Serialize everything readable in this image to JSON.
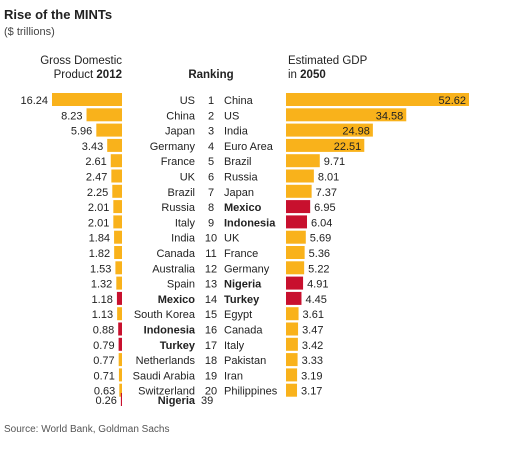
{
  "title": "Rise of the MINTs",
  "subtitle": "($ trillions)",
  "left_header": {
    "line1": "Gross Domestic",
    "line2": "Product",
    "year": "2012"
  },
  "center_header": "Ranking",
  "right_header": {
    "line1": "Estimated GDP",
    "line2": "in",
    "year": "2050"
  },
  "source": "Source: World Bank, Goldman Sachs",
  "colors": {
    "normal": "#f9b21b",
    "highlight": "#c8102e",
    "text": "#222222",
    "muted": "#555555"
  },
  "chart_data": [
    {
      "type": "bar",
      "orientation": "horizontal",
      "title": "Gross Domestic Product 2012",
      "unit": "$ trillions",
      "bar_direction": "right-to-left",
      "rows": [
        {
          "rank": "1",
          "country": "US",
          "value": 16.24,
          "label": "16.24",
          "highlight": false
        },
        {
          "rank": "2",
          "country": "China",
          "value": 8.23,
          "label": "8.23",
          "highlight": false
        },
        {
          "rank": "3",
          "country": "Japan",
          "value": 5.96,
          "label": "5.96",
          "highlight": false
        },
        {
          "rank": "4",
          "country": "Germany",
          "value": 3.43,
          "label": "3.43",
          "highlight": false
        },
        {
          "rank": "5",
          "country": "France",
          "value": 2.61,
          "label": "2.61",
          "highlight": false
        },
        {
          "rank": "6",
          "country": "UK",
          "value": 2.47,
          "label": "2.47",
          "highlight": false
        },
        {
          "rank": "7",
          "country": "Brazil",
          "value": 2.25,
          "label": "2.25",
          "highlight": false
        },
        {
          "rank": "8",
          "country": "Russia",
          "value": 2.01,
          "label": "2.01",
          "highlight": false
        },
        {
          "rank": "9",
          "country": "Italy",
          "value": 2.01,
          "label": "2.01",
          "highlight": false
        },
        {
          "rank": "10",
          "country": "India",
          "value": 1.84,
          "label": "1.84",
          "highlight": false
        },
        {
          "rank": "11",
          "country": "Canada",
          "value": 1.82,
          "label": "1.82",
          "highlight": false
        },
        {
          "rank": "12",
          "country": "Australia",
          "value": 1.53,
          "label": "1.53",
          "highlight": false
        },
        {
          "rank": "13",
          "country": "Spain",
          "value": 1.32,
          "label": "1.32",
          "highlight": false
        },
        {
          "rank": "14",
          "country": "Mexico",
          "value": 1.18,
          "label": "1.18",
          "highlight": true
        },
        {
          "rank": "15",
          "country": "South Korea",
          "value": 1.13,
          "label": "1.13",
          "highlight": false
        },
        {
          "rank": "16",
          "country": "Indonesia",
          "value": 0.88,
          "label": "0.88",
          "highlight": true
        },
        {
          "rank": "17",
          "country": "Turkey",
          "value": 0.79,
          "label": "0.79",
          "highlight": true
        },
        {
          "rank": "18",
          "country": "Netherlands",
          "value": 0.77,
          "label": "0.77",
          "highlight": false
        },
        {
          "rank": "19",
          "country": "Saudi Arabia",
          "value": 0.71,
          "label": "0.71",
          "highlight": false
        },
        {
          "rank": "20",
          "country": "Switzerland",
          "value": 0.63,
          "label": "0.63",
          "highlight": false
        },
        {
          "rank": "39",
          "country": "Nigeria",
          "value": 0.26,
          "label": "0.26",
          "highlight": true
        }
      ]
    },
    {
      "type": "bar",
      "orientation": "horizontal",
      "title": "Estimated GDP in 2050",
      "unit": "$ trillions",
      "bar_direction": "left-to-right",
      "rows": [
        {
          "rank": "1",
          "country": "China",
          "value": 52.62,
          "label": "52.62",
          "highlight": false
        },
        {
          "rank": "2",
          "country": "US",
          "value": 34.58,
          "label": "34.58",
          "highlight": false
        },
        {
          "rank": "3",
          "country": "India",
          "value": 24.98,
          "label": "24.98",
          "highlight": false
        },
        {
          "rank": "4",
          "country": "Euro Area",
          "value": 22.51,
          "label": "22.51",
          "highlight": false
        },
        {
          "rank": "5",
          "country": "Brazil",
          "value": 9.71,
          "label": "9.71",
          "highlight": false
        },
        {
          "rank": "6",
          "country": "Russia",
          "value": 8.01,
          "label": "8.01",
          "highlight": false
        },
        {
          "rank": "7",
          "country": "Japan",
          "value": 7.37,
          "label": "7.37",
          "highlight": false
        },
        {
          "rank": "8",
          "country": "Mexico",
          "value": 6.95,
          "label": "6.95",
          "highlight": true
        },
        {
          "rank": "9",
          "country": "Indonesia",
          "value": 6.04,
          "label": "6.04",
          "highlight": true
        },
        {
          "rank": "10",
          "country": "UK",
          "value": 5.69,
          "label": "5.69",
          "highlight": false
        },
        {
          "rank": "11",
          "country": "France",
          "value": 5.36,
          "label": "5.36",
          "highlight": false
        },
        {
          "rank": "12",
          "country": "Germany",
          "value": 5.22,
          "label": "5.22",
          "highlight": false
        },
        {
          "rank": "13",
          "country": "Nigeria",
          "value": 4.91,
          "label": "4.91",
          "highlight": true
        },
        {
          "rank": "14",
          "country": "Turkey",
          "value": 4.45,
          "label": "4.45",
          "highlight": true
        },
        {
          "rank": "15",
          "country": "Egypt",
          "value": 3.61,
          "label": "3.61",
          "highlight": false
        },
        {
          "rank": "16",
          "country": "Canada",
          "value": 3.47,
          "label": "3.47",
          "highlight": false
        },
        {
          "rank": "17",
          "country": "Italy",
          "value": 3.42,
          "label": "3.42",
          "highlight": false
        },
        {
          "rank": "18",
          "country": "Pakistan",
          "value": 3.33,
          "label": "3.33",
          "highlight": false
        },
        {
          "rank": "19",
          "country": "Iran",
          "value": 3.19,
          "label": "3.19",
          "highlight": false
        },
        {
          "rank": "20",
          "country": "Philippines",
          "value": 3.17,
          "label": "3.17",
          "highlight": false
        }
      ]
    }
  ]
}
